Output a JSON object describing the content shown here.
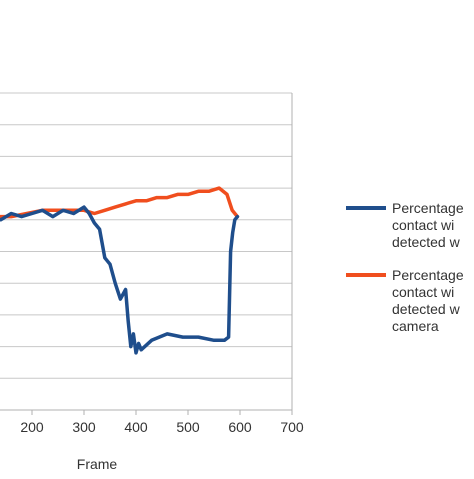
{
  "chart_data": {
    "type": "line",
    "title": "",
    "xlabel": "Frame",
    "ylabel": "",
    "xlim": [
      100,
      700
    ],
    "x_ticks": [
      200,
      300,
      400,
      500,
      600,
      700
    ],
    "grid": true,
    "legend_position": "right",
    "series": [
      {
        "name": "Percentage of body contact with ground detected with ...",
        "legend_lines": [
          "Percentage",
          "contact wi",
          "detected w"
        ],
        "color": "#1f4e8c",
        "x": [
          100,
          120,
          140,
          160,
          180,
          200,
          220,
          240,
          260,
          280,
          300,
          310,
          320,
          330,
          340,
          350,
          360,
          370,
          380,
          385,
          390,
          395,
          400,
          405,
          410,
          430,
          460,
          490,
          520,
          550,
          570,
          578,
          582,
          586,
          590,
          595
        ],
        "y": [
          0.6,
          0.61,
          0.6,
          0.62,
          0.61,
          0.62,
          0.63,
          0.61,
          0.63,
          0.62,
          0.64,
          0.62,
          0.59,
          0.57,
          0.48,
          0.46,
          0.4,
          0.35,
          0.38,
          0.28,
          0.2,
          0.24,
          0.18,
          0.21,
          0.19,
          0.22,
          0.24,
          0.23,
          0.23,
          0.22,
          0.22,
          0.23,
          0.5,
          0.56,
          0.6,
          0.61
        ]
      },
      {
        "name": "Percentage of body contact with ground detected with ... camera",
        "legend_lines": [
          "Percentage",
          "contact wi",
          "detected w",
          "camera"
        ],
        "color": "#f04e1e",
        "x": [
          100,
          130,
          160,
          190,
          220,
          250,
          280,
          300,
          320,
          340,
          360,
          380,
          400,
          420,
          440,
          460,
          480,
          500,
          520,
          540,
          560,
          575,
          585,
          595
        ],
        "y": [
          0.6,
          0.61,
          0.61,
          0.62,
          0.63,
          0.63,
          0.63,
          0.63,
          0.62,
          0.63,
          0.64,
          0.65,
          0.66,
          0.66,
          0.67,
          0.67,
          0.68,
          0.68,
          0.69,
          0.69,
          0.7,
          0.68,
          0.63,
          0.61
        ]
      }
    ]
  }
}
